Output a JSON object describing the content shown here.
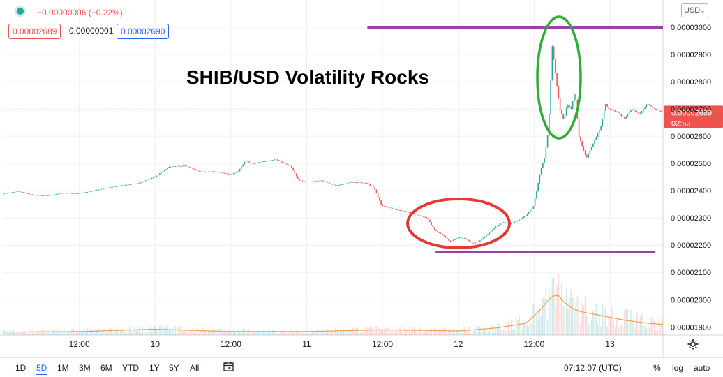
{
  "header": {
    "change": "−0.00000006 (−0.22%)",
    "bid": "0.00002689",
    "spread": "0.00000001",
    "ask": "0.00002690",
    "currency": "USD",
    "currency_caret": "⌄"
  },
  "annotation": {
    "title": "SHIB/USD Volatility Rocks"
  },
  "price_label": {
    "price": "0.00002689",
    "countdown": "02:52",
    "value": 2.689e-05
  },
  "bottom": {
    "ranges": [
      "1D",
      "5D",
      "1M",
      "3M",
      "6M",
      "YTD",
      "1Y",
      "5Y",
      "All"
    ],
    "active_range": "5D",
    "clock": "07:12:07 (UTC)",
    "percent": "%",
    "log": "log",
    "auto": "auto"
  },
  "colors": {
    "up": "#26a69a",
    "down": "#ef5350",
    "grid": "#eef0f3",
    "annotation_line": "#9c3fa6",
    "ellipse_low": "#e53935",
    "ellipse_high": "#2eab3a",
    "volume_ma": "#f59c4c"
  },
  "chart_data": {
    "type": "candlestick",
    "y_tick_labels": [
      "0.00003000",
      "0.00002900",
      "0.00002800",
      "0.00002700",
      "0.00002600",
      "0.00002500",
      "0.00002400",
      "0.00002300",
      "0.00002200",
      "0.00002100",
      "0.00002000",
      "0.00001900"
    ],
    "y_ticks": [
      3e-05,
      2.9e-05,
      2.8e-05,
      2.7e-05,
      2.6e-05,
      2.5e-05,
      2.4e-05,
      2.3e-05,
      2.2e-05,
      2.1e-05,
      2e-05,
      1.9e-05
    ],
    "ylim": [
      1.87e-05,
      3.1e-05
    ],
    "x_tick_labels": [
      "12:00",
      "10",
      "12:00",
      "11",
      "12:00",
      "12",
      "12:00",
      "13"
    ],
    "price_path": [
      [
        0,
        2.388e-05
      ],
      [
        2,
        2.398e-05
      ],
      [
        4,
        2.384e-05
      ],
      [
        6,
        2.382e-05
      ],
      [
        8,
        2.392e-05
      ],
      [
        10,
        2.39e-05
      ],
      [
        12,
        2.4e-05
      ],
      [
        14,
        2.412e-05
      ],
      [
        16,
        2.42e-05
      ],
      [
        18,
        2.428e-05
      ],
      [
        20,
        2.45e-05
      ],
      [
        22,
        2.488e-05
      ],
      [
        24,
        2.492e-05
      ],
      [
        26,
        2.47e-05
      ],
      [
        28,
        2.47e-05
      ],
      [
        30,
        2.46e-05
      ],
      [
        31,
        2.468e-05
      ],
      [
        32,
        2.51e-05
      ],
      [
        33,
        2.5e-05
      ],
      [
        34,
        2.505e-05
      ],
      [
        36,
        2.515e-05
      ],
      [
        38,
        2.49e-05
      ],
      [
        39,
        2.44e-05
      ],
      [
        40,
        2.432e-05
      ],
      [
        42,
        2.438e-05
      ],
      [
        44,
        2.418e-05
      ],
      [
        46,
        2.432e-05
      ],
      [
        48,
        2.428e-05
      ],
      [
        49,
        2.41e-05
      ],
      [
        50,
        2.345e-05
      ],
      [
        52,
        2.33e-05
      ],
      [
        54,
        2.318e-05
      ],
      [
        55,
        2.308e-05
      ],
      [
        56,
        2.3e-05
      ],
      [
        57,
        2.255e-05
      ],
      [
        58,
        2.238e-05
      ],
      [
        59,
        2.212e-05
      ],
      [
        60,
        2.228e-05
      ],
      [
        61,
        2.225e-05
      ],
      [
        62,
        2.205e-05
      ],
      [
        63,
        2.218e-05
      ],
      [
        64,
        2.24e-05
      ],
      [
        65,
        2.268e-05
      ],
      [
        66,
        2.285e-05
      ],
      [
        67,
        2.278e-05
      ],
      [
        68,
        2.29e-05
      ],
      [
        69,
        2.31e-05
      ],
      [
        70,
        2.34e-05
      ],
      [
        71,
        2.48e-05
      ],
      [
        71.5,
        2.52e-05
      ],
      [
        72,
        2.63e-05
      ],
      [
        72.5,
        2.93e-05
      ],
      [
        73,
        2.81e-05
      ],
      [
        73.5,
        2.7e-05
      ],
      [
        74,
        2.66e-05
      ],
      [
        74.5,
        2.72e-05
      ],
      [
        75,
        2.7e-05
      ],
      [
        75.5,
        2.77e-05
      ],
      [
        76,
        2.6e-05
      ],
      [
        76.5,
        2.56e-05
      ],
      [
        77,
        2.52e-05
      ],
      [
        78,
        2.58e-05
      ],
      [
        79,
        2.64e-05
      ],
      [
        79.5,
        2.72e-05
      ],
      [
        80,
        2.7e-05
      ],
      [
        81,
        2.69e-05
      ],
      [
        82,
        2.665e-05
      ],
      [
        83,
        2.7e-05
      ],
      [
        84,
        2.68e-05
      ],
      [
        85,
        2.72e-05
      ],
      [
        86,
        2.7e-05
      ],
      [
        87,
        2.689e-05
      ]
    ],
    "x_range": [
      0,
      87
    ],
    "x_tick_positions": [
      10,
      20,
      30,
      40,
      50,
      60,
      70,
      80
    ],
    "volume_ma": [
      [
        0,
        0.05
      ],
      [
        10,
        0.06
      ],
      [
        20,
        0.1
      ],
      [
        30,
        0.06
      ],
      [
        40,
        0.06
      ],
      [
        50,
        0.09
      ],
      [
        60,
        0.07
      ],
      [
        65,
        0.12
      ],
      [
        69,
        0.2
      ],
      [
        71,
        0.45
      ],
      [
        72,
        0.62
      ],
      [
        73,
        0.7
      ],
      [
        74,
        0.55
      ],
      [
        75,
        0.45
      ],
      [
        76,
        0.4
      ],
      [
        78,
        0.35
      ],
      [
        80,
        0.3
      ],
      [
        82,
        0.25
      ],
      [
        85,
        0.2
      ],
      [
        87,
        0.18
      ]
    ],
    "annotations": {
      "resistance": 3e-05,
      "support": 2.175e-05,
      "resistance_x": [
        48,
        87
      ],
      "support_x": [
        57,
        86
      ]
    }
  }
}
